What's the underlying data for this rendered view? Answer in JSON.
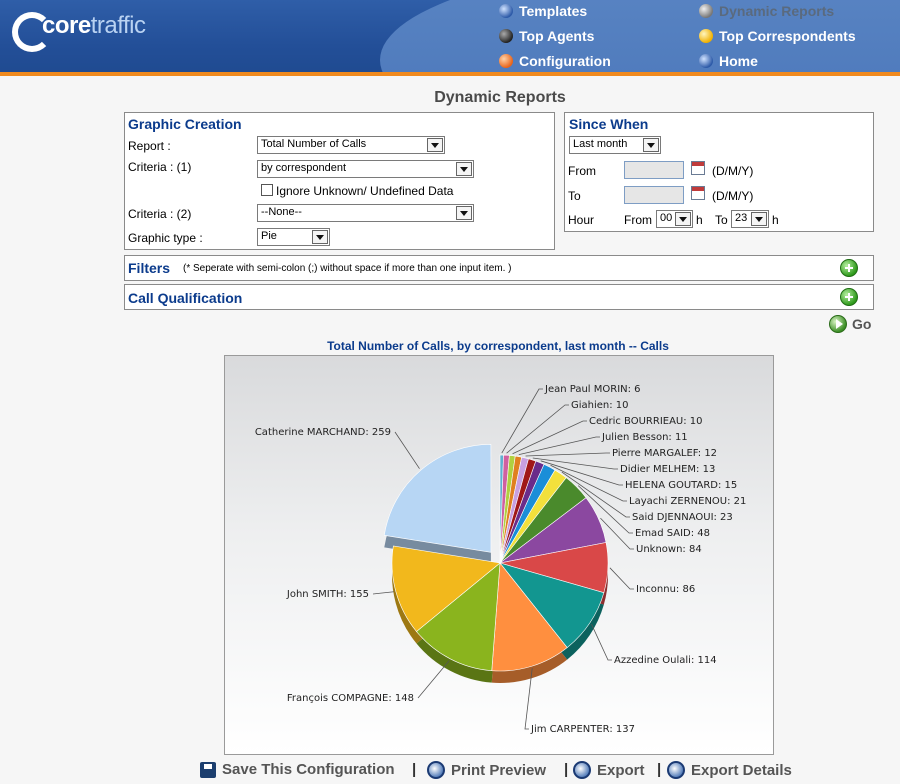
{
  "brand": {
    "part1": "core",
    "part2": "traffic"
  },
  "nav": {
    "templates": "Templates",
    "top_agents": "Top Agents",
    "configuration": "Configuration",
    "dynamic_reports": "Dynamic Reports",
    "top_correspondents": "Top Correspondents",
    "home": "Home"
  },
  "page_title": "Dynamic Reports",
  "graphic_creation": {
    "title": "Graphic Creation",
    "report_label": "Report :",
    "report_value": "Total Number of Calls",
    "criteria1_label": "Criteria : (1)",
    "criteria1_value": "by correspondent",
    "ignore_label": "Ignore Unknown/ Undefined Data",
    "criteria2_label": "Criteria : (2)",
    "criteria2_value": "--None--",
    "graphic_type_label": "Graphic type :",
    "graphic_type_value": "Pie"
  },
  "since_when": {
    "title": "Since When",
    "period_value": "Last month",
    "from_label": "From",
    "to_label": "To",
    "date_format": "(D/M/Y)",
    "hour_label": "Hour",
    "hour_from_label": "From",
    "hour_from_value": "00",
    "hour_unit": "h",
    "hour_to_label": "To",
    "hour_to_value": "23"
  },
  "filters": {
    "title": "Filters",
    "note": "(* Seperate with semi-colon (;) without space if more than one input item. )"
  },
  "call_qualification": {
    "title": "Call Qualification"
  },
  "go_label": "Go",
  "chart_title": "Total Number of Calls, by correspondent, last month -- Calls",
  "chart_data": {
    "type": "pie",
    "title": "Total Number of Calls, by correspondent, last month -- Calls",
    "categories": [
      "Catherine MARCHAND",
      "John SMITH",
      "François COMPAGNE",
      "Jim CARPENTER",
      "Azzedine Oulali",
      "Inconnu",
      "Unknown",
      "Emad SAID",
      "Said DJENNAOUI",
      "Layachi ZERNENOU",
      "HELENA GOUTARD",
      "Didier MELHEM",
      "Pierre MARGALEF",
      "Julien Besson",
      "Cedric BOURRIEAU",
      "Giahien",
      "Jean Paul MORIN"
    ],
    "values": [
      259,
      155,
      148,
      137,
      114,
      86,
      84,
      48,
      23,
      21,
      15,
      13,
      12,
      11,
      10,
      10,
      6
    ],
    "colors": [
      "#b7d6f4",
      "#f2b81c",
      "#8ab41e",
      "#ff8f3f",
      "#129690",
      "#d94848",
      "#8b48a0",
      "#4a8a2c",
      "#f2e03c",
      "#1a8ed8",
      "#6a2c8a",
      "#a01818",
      "#c8a0e0",
      "#e08020",
      "#b0d040",
      "#d060a0",
      "#60b0d0"
    ],
    "exploded": "Catherine MARCHAND",
    "legend": "labels beside slices"
  },
  "actions": {
    "save": "Save This Configuration",
    "print": "Print Preview",
    "export": "Export",
    "export_details": "Export Details",
    "separator": "|"
  }
}
